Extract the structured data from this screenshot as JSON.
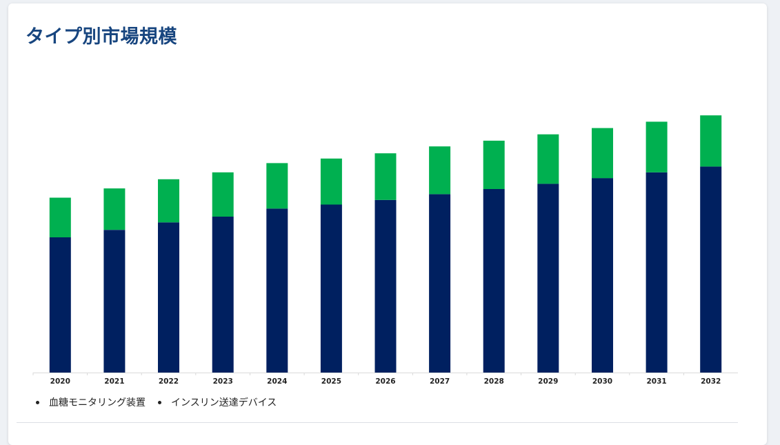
{
  "page": {
    "title": "タイプ別市場規模"
  },
  "colors": {
    "title": "#17457f",
    "series_bottom": "#002060",
    "series_top": "#00b050",
    "axis": "#d9d9d9",
    "tick_text": "#222222"
  },
  "legend": {
    "items": [
      {
        "label": "血糖モニタリング装置"
      },
      {
        "label": "インスリン送達デバイス"
      }
    ]
  },
  "chart_data": {
    "type": "bar",
    "stacked": true,
    "title": "",
    "xlabel": "",
    "ylabel": "",
    "y_axis_visible": false,
    "grid": false,
    "legend_position": "bottom-left",
    "ylim": [
      0,
      450
    ],
    "categories": [
      "2020",
      "2021",
      "2022",
      "2023",
      "2024",
      "2025",
      "2026",
      "2027",
      "2028",
      "2029",
      "2030",
      "2031",
      "2032"
    ],
    "series": [
      {
        "name": "血糖モニタリング装置",
        "color": "#002060",
        "values": [
          235,
          248,
          261,
          271,
          285,
          292,
          300,
          310,
          319,
          328,
          338,
          348,
          358
        ]
      },
      {
        "name": "インスリン送達デバイス",
        "color": "#00b050",
        "values": [
          69,
          72,
          75,
          77,
          79,
          80,
          81,
          83,
          84,
          86,
          87,
          88,
          89
        ]
      }
    ]
  }
}
